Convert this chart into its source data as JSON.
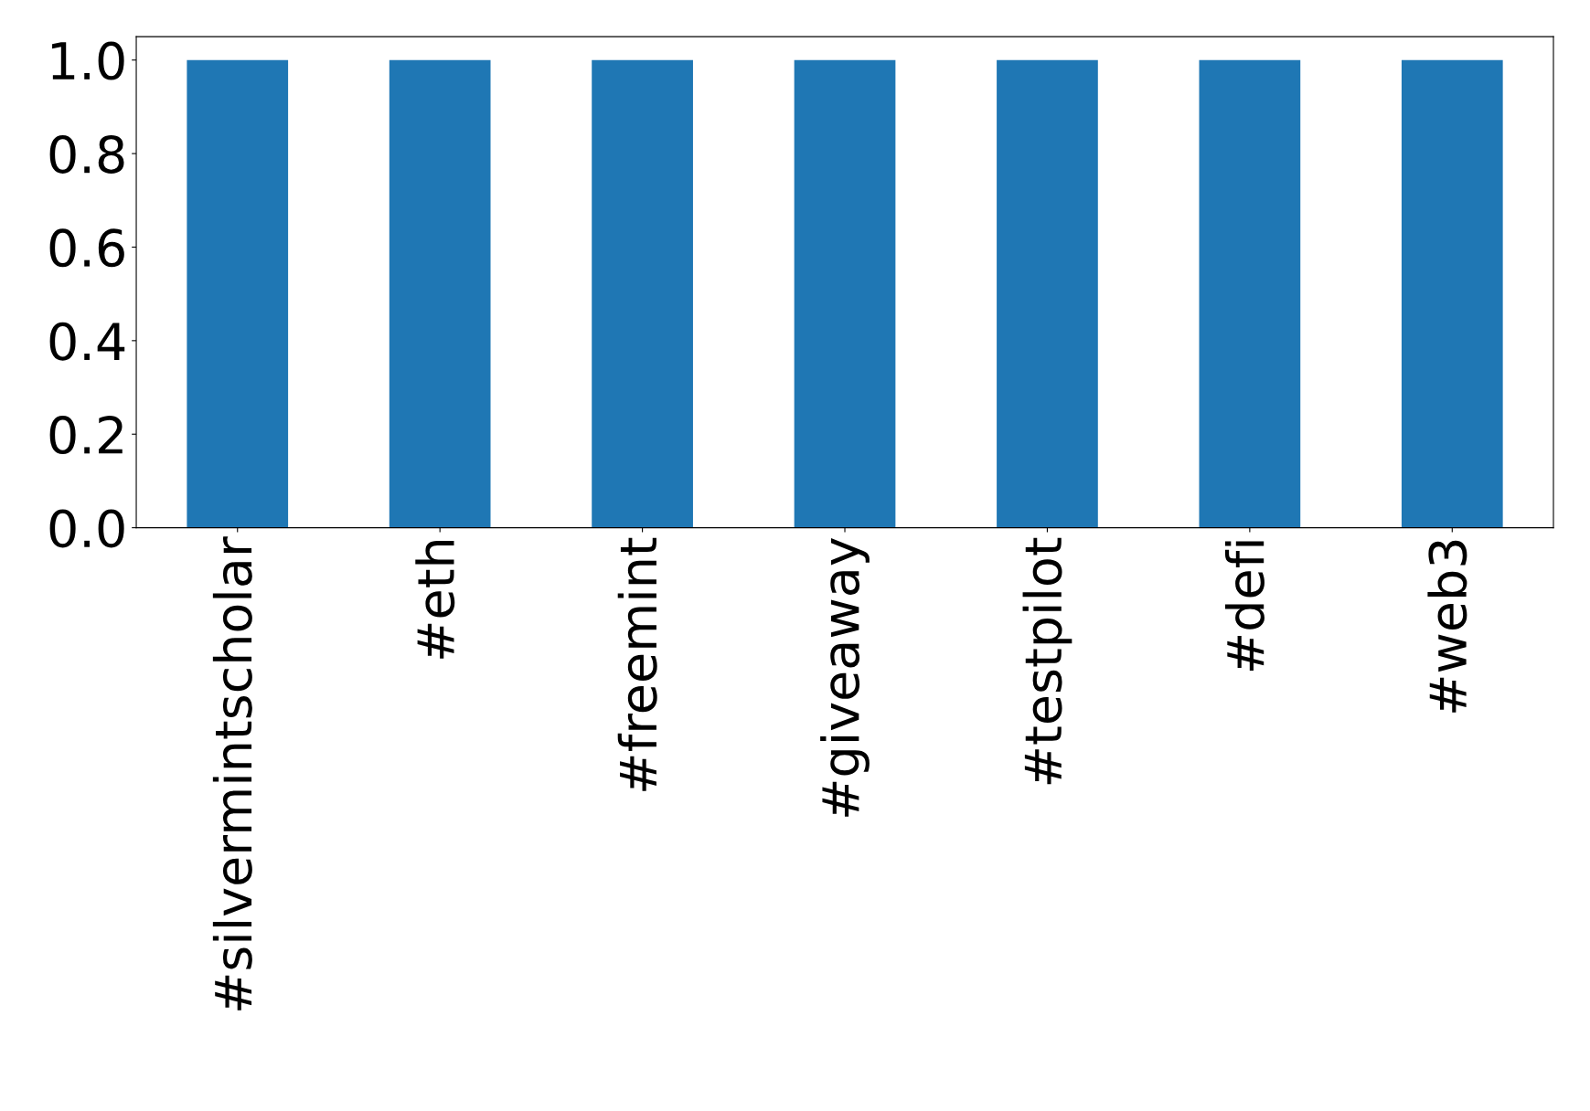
{
  "chart_data": {
    "type": "bar",
    "categories": [
      "#silvermintscholar",
      "#eth",
      "#freemint",
      "#giveaway",
      "#testpilot",
      "#defi",
      "#web3"
    ],
    "values": [
      1,
      1,
      1,
      1,
      1,
      1,
      1
    ],
    "color": "#1f77b4",
    "ylim": [
      0,
      1.05
    ],
    "yticks": [
      {
        "value": 0,
        "label": "0.0"
      },
      {
        "value": 0.2,
        "label": "0.2"
      },
      {
        "value": 0.4,
        "label": "0.4"
      },
      {
        "value": 0.6,
        "label": "0.6"
      },
      {
        "value": 0.8,
        "label": "0.8"
      },
      {
        "value": 1,
        "label": "1.0"
      }
    ],
    "grid": false,
    "legend": false
  }
}
